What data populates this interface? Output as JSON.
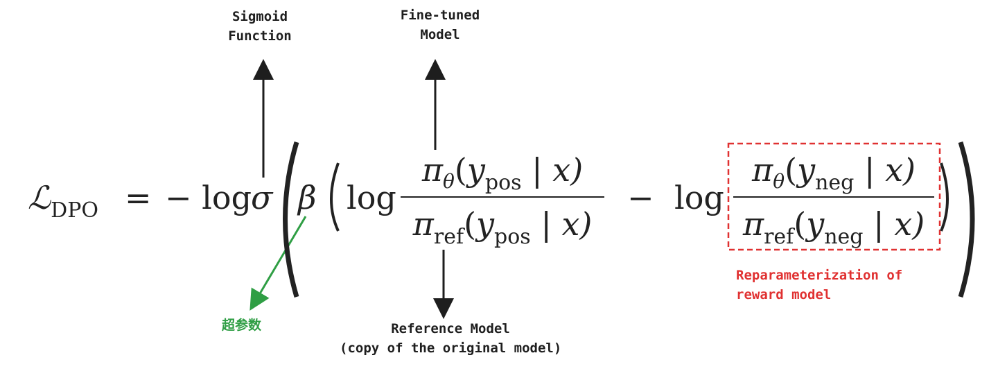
{
  "annotations": {
    "sigmoid": [
      "Sigmoid",
      "Function"
    ],
    "finetuned": [
      "Fine-tuned",
      "Model"
    ],
    "reference": [
      "Reference Model",
      "(copy of the original model)"
    ],
    "hyperparam": "超参数",
    "reparam": [
      "Reparameterization of",
      "reward model"
    ]
  },
  "formula": {
    "loss_symbol": "ℒ",
    "loss_sub": "DPO",
    "equals": "=",
    "neg_log": "− log",
    "sigma": "σ",
    "beta": "β",
    "log": "log",
    "minus": "−",
    "pi": "π",
    "theta": "θ",
    "ref": "ref",
    "y": "y",
    "pos": "pos",
    "neg": "neg",
    "given_x": "| x)",
    "open_paren": "("
  },
  "colors": {
    "annotation": "#1e1e1e",
    "highlight_box": "#e03131",
    "hyperparam_arrow": "#2f9e44"
  }
}
